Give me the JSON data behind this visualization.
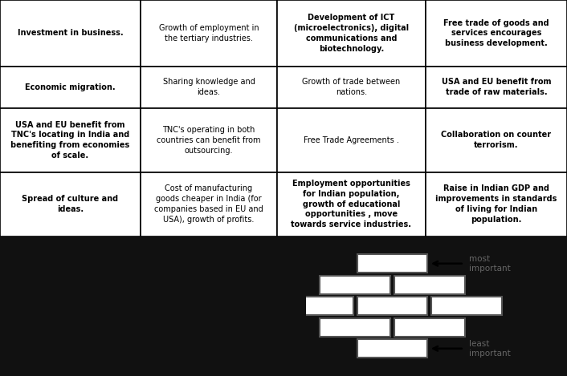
{
  "table_cells": [
    {
      "row": 0,
      "col": 0,
      "text": "Investment in business.",
      "bold": true
    },
    {
      "row": 0,
      "col": 1,
      "text": "Growth of employment in\nthe tertiary industries.",
      "bold": false
    },
    {
      "row": 0,
      "col": 2,
      "text": "Development of ICT\n(microelectronics), digital\ncommunications and\nbiotechnology.",
      "bold": true
    },
    {
      "row": 0,
      "col": 3,
      "text": "Free trade of goods and\nservices encourages\nbusiness development.",
      "bold": true
    },
    {
      "row": 1,
      "col": 0,
      "text": "Economic migration.",
      "bold": true
    },
    {
      "row": 1,
      "col": 1,
      "text": "Sharing knowledge and\nideas.",
      "bold": false
    },
    {
      "row": 1,
      "col": 2,
      "text": "Growth of trade between\nnations.",
      "bold": false
    },
    {
      "row": 1,
      "col": 3,
      "text": "USA and EU benefit from\ntrade of raw materials.",
      "bold": true
    },
    {
      "row": 2,
      "col": 0,
      "text": "USA and EU benefit from\nTNC's locating in India and\nbenefiting from economies\nof scale.",
      "bold": true
    },
    {
      "row": 2,
      "col": 1,
      "text": "TNC's operating in both\ncountries can benefit from\noutsourcing.",
      "bold": false
    },
    {
      "row": 2,
      "col": 2,
      "text": "Free Trade Agreements .",
      "bold": false
    },
    {
      "row": 2,
      "col": 3,
      "text": "Collaboration on counter\nterrorism.",
      "bold": true
    },
    {
      "row": 3,
      "col": 0,
      "text": "Spread of culture and\nideas.",
      "bold": true
    },
    {
      "row": 3,
      "col": 1,
      "text": "Cost of manufacturing\ngoods cheaper in India (for\ncompanies based in EU and\nUSA), growth of profits.",
      "bold": false
    },
    {
      "row": 3,
      "col": 2,
      "text": "Employment opportunities\nfor Indian population,\ngrowth of educational\nopportunities , move\ntowards service industries.",
      "bold": true
    },
    {
      "row": 3,
      "col": 3,
      "text": "Raise in Indian GDP and\nimprovements in standards\nof living for Indian\npopulation.",
      "bold": true
    }
  ],
  "text_color": "#000000",
  "border_color": "#000000",
  "bg_color": "#ffffff",
  "dark_bg": "#111111",
  "font_size": 7.0,
  "brick_color": "#ffffff",
  "brick_edge": "#555555",
  "brick_lw": 1.5,
  "label_color": "#666666"
}
